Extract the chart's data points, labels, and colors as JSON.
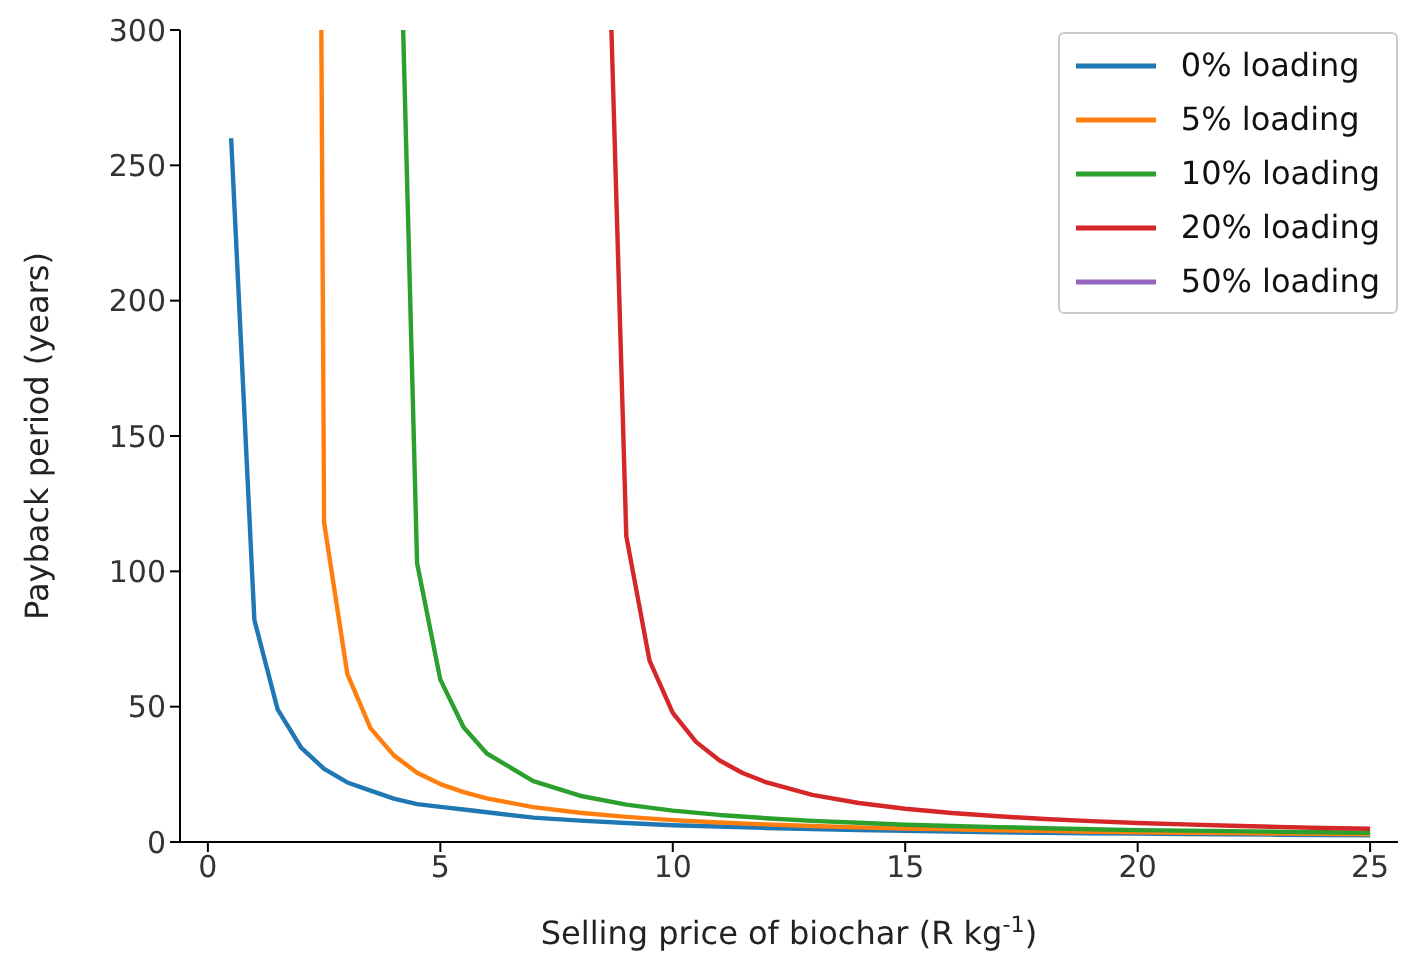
{
  "chart_data": {
    "type": "line",
    "xlabel": "Selling price of biochar (R kg$^{-1}$)",
    "ylabel": "Payback period (years)",
    "xlim": [
      -0.6,
      25.6
    ],
    "xticks": [
      0,
      5,
      10,
      15,
      20,
      25
    ],
    "ylim": [
      0,
      300
    ],
    "yticks": [
      0,
      50,
      100,
      150,
      200,
      250,
      300
    ],
    "grid": false,
    "legend": "top right",
    "marker": "none",
    "line_style": "solid",
    "series": [
      {
        "name": "0% loading",
        "color": "#1f77b4",
        "x": [
          0.5,
          1,
          1.5,
          2,
          2.5,
          3,
          3.5,
          4,
          4.5,
          5,
          5.5,
          6,
          7,
          8,
          9,
          10,
          11,
          12,
          13,
          14,
          15,
          16,
          17,
          18,
          19,
          20,
          21,
          22,
          23,
          24,
          25
        ],
        "values": [
          260,
          82,
          49,
          35,
          27,
          22,
          19,
          16,
          14,
          13,
          12,
          11,
          9.0,
          7.9,
          7.0,
          6.2,
          5.7,
          5.2,
          4.8,
          4.4,
          4.1,
          3.9,
          3.6,
          3.4,
          3.2,
          3.1,
          2.9,
          2.8,
          2.7,
          2.6,
          2.5
        ]
      },
      {
        "name": "5% loading",
        "color": "#ff7f0e",
        "x": [
          2.44,
          2.5,
          3,
          3.5,
          4,
          4.5,
          5,
          5.5,
          6,
          7,
          8,
          9,
          10,
          11,
          12,
          13,
          14,
          15,
          16,
          17,
          18,
          19,
          20,
          21,
          22,
          23,
          24,
          25
        ],
        "values": [
          300,
          118,
          62,
          42,
          32,
          25.6,
          21.4,
          18.4,
          16.1,
          12.9,
          10.8,
          9.3,
          8.1,
          7.2,
          6.5,
          5.9,
          5.4,
          5.0,
          4.7,
          4.3,
          4.1,
          3.8,
          3.6,
          3.4,
          3.3,
          3.1,
          3.0,
          2.8
        ]
      },
      {
        "name": "10% loading",
        "color": "#2ca02c",
        "x": [
          4.2,
          4.5,
          5,
          5.5,
          6,
          7,
          8,
          9,
          10,
          11,
          12,
          13,
          14,
          15,
          16,
          17,
          18,
          19,
          20,
          21,
          22,
          23,
          24,
          25
        ],
        "values": [
          300,
          103,
          60,
          42.4,
          32.7,
          22.5,
          17.1,
          13.8,
          11.6,
          10.0,
          8.8,
          7.8,
          7.1,
          6.4,
          5.9,
          5.5,
          5.1,
          4.7,
          4.4,
          4.2,
          4.0,
          3.8,
          3.6,
          3.4
        ]
      },
      {
        "name": "20% loading",
        "color": "#d62728",
        "x": [
          8.68,
          9,
          9.5,
          10,
          10.5,
          11,
          11.5,
          12,
          13,
          14,
          15,
          16,
          17,
          18,
          19,
          20,
          21,
          22,
          23,
          24,
          25
        ],
        "values": [
          300,
          113,
          67,
          47.7,
          37,
          30.2,
          25.5,
          22.1,
          17.4,
          14.4,
          12.3,
          10.7,
          9.5,
          8.5,
          7.7,
          7.0,
          6.5,
          6.0,
          5.6,
          5.2,
          4.9
        ]
      },
      {
        "name": "50% loading",
        "color": "#9467bd"
      }
    ]
  }
}
